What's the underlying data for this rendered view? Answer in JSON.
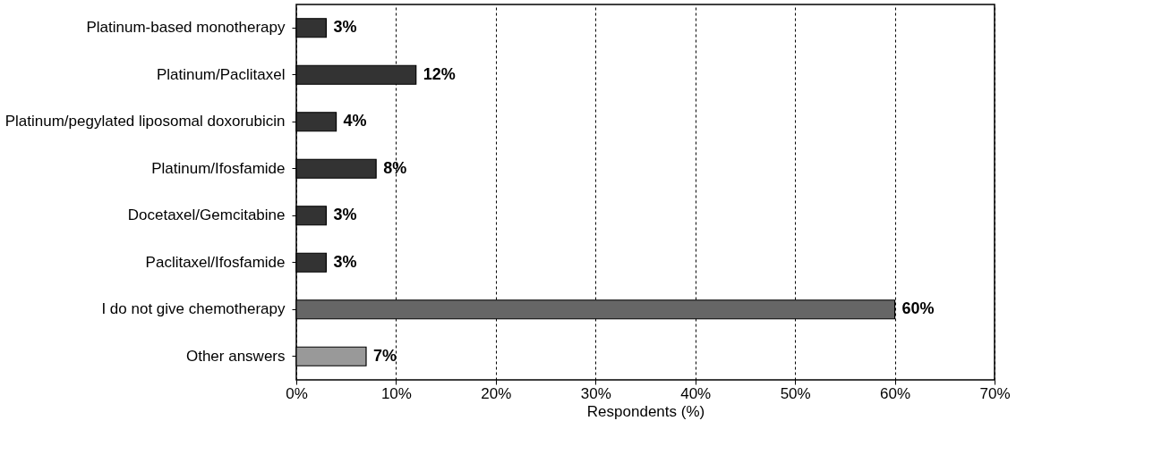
{
  "chart_data": {
    "type": "bar",
    "orientation": "horizontal",
    "xlabel": "Respondents (%)",
    "categories": [
      "Platinum-based monotherapy",
      "Platinum/Paclitaxel",
      "Platinum/pegylated liposomal doxorubicin",
      "Platinum/Ifosfamide",
      "Docetaxel/Gemcitabine",
      "Paclitaxel/Ifosfamide",
      "I do not give chemotherapy",
      "Other answers"
    ],
    "values": [
      3,
      12,
      4,
      8,
      3,
      3,
      60,
      7
    ],
    "colors": [
      "#333333",
      "#333333",
      "#333333",
      "#333333",
      "#333333",
      "#333333",
      "#666666",
      "#999999"
    ],
    "value_labels": [
      "3%",
      "12%",
      "4%",
      "8%",
      "3%",
      "3%",
      "60%",
      "7%"
    ],
    "xlim": [
      0,
      70
    ],
    "xticks": [
      {
        "value": 0,
        "label": "0%"
      },
      {
        "value": 10,
        "label": "10%"
      },
      {
        "value": 20,
        "label": "20%"
      },
      {
        "value": 30,
        "label": "30%"
      },
      {
        "value": 40,
        "label": "40%"
      },
      {
        "value": 50,
        "label": "50%"
      },
      {
        "value": 60,
        "label": "60%"
      },
      {
        "value": 70,
        "label": "70%"
      }
    ],
    "grid": "x"
  }
}
